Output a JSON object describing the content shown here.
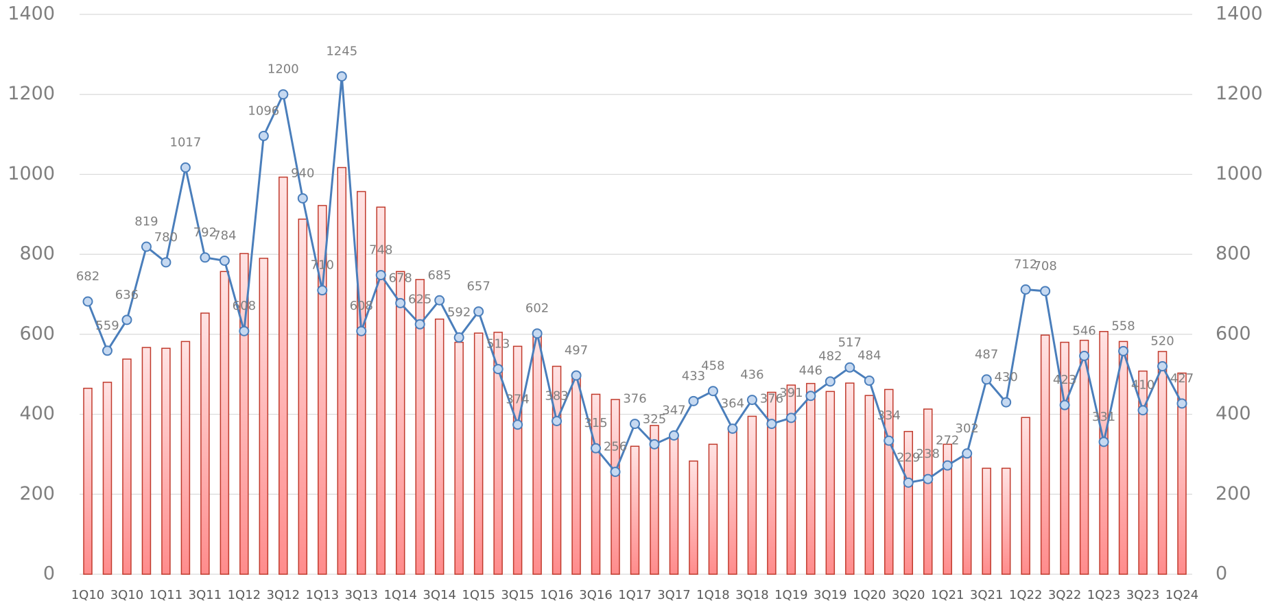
{
  "chart_data": {
    "type": "combo",
    "categories": [
      "1Q10",
      null,
      "3Q10",
      null,
      "1Q11",
      null,
      "3Q11",
      null,
      "1Q12",
      null,
      "3Q12",
      null,
      "1Q13",
      null,
      "3Q13",
      null,
      "1Q14",
      null,
      "3Q14",
      null,
      "1Q15",
      null,
      "3Q15",
      null,
      "1Q16",
      null,
      "3Q16",
      null,
      "1Q17",
      null,
      "3Q17",
      null,
      "1Q18",
      null,
      "3Q18",
      null,
      "1Q19",
      null,
      "3Q19",
      null,
      "1Q20",
      null,
      "3Q20",
      null,
      "1Q21",
      null,
      "3Q21",
      null,
      "1Q22",
      null,
      "3Q22",
      null,
      "1Q23",
      null,
      "3Q23",
      null,
      "1Q24"
    ],
    "series": [
      {
        "type": "bar",
        "color": "#c0392b",
        "values": [
          465,
          480,
          538,
          567,
          565,
          582,
          653,
          757,
          802,
          790,
          993,
          888,
          922,
          1017,
          957,
          918,
          757,
          737,
          638,
          580,
          603,
          605,
          570,
          597,
          520,
          490,
          450,
          437,
          320,
          372,
          345,
          283,
          325,
          368,
          395,
          455,
          473,
          477,
          457,
          478,
          447,
          462,
          357,
          413,
          325,
          305,
          265,
          265,
          392,
          598,
          580,
          585,
          607,
          582,
          508,
          557,
          503
        ]
      },
      {
        "type": "line",
        "color": "#4a7ebb",
        "axis": "y2",
        "values": [
          682,
          559,
          636,
          819,
          780,
          1017,
          792,
          784,
          608,
          1096,
          1200,
          940,
          710,
          1245,
          608,
          748,
          678,
          625,
          685,
          592,
          657,
          513,
          374,
          602,
          383,
          497,
          315,
          256,
          376,
          325,
          347,
          433,
          458,
          364,
          436,
          376,
          391,
          446,
          482,
          517,
          484,
          334,
          229,
          238,
          272,
          302,
          487,
          430,
          712,
          708,
          423,
          546,
          331,
          558,
          410,
          520,
          427
        ]
      }
    ],
    "ylim": [
      0,
      1400
    ],
    "yticks": [
      0,
      200,
      400,
      600,
      800,
      1000,
      1200,
      1400
    ],
    "y2lim": [
      0,
      1400
    ],
    "y2ticks": [
      0,
      200,
      400,
      600,
      800,
      1000,
      1200,
      1400
    ],
    "grid": true
  }
}
